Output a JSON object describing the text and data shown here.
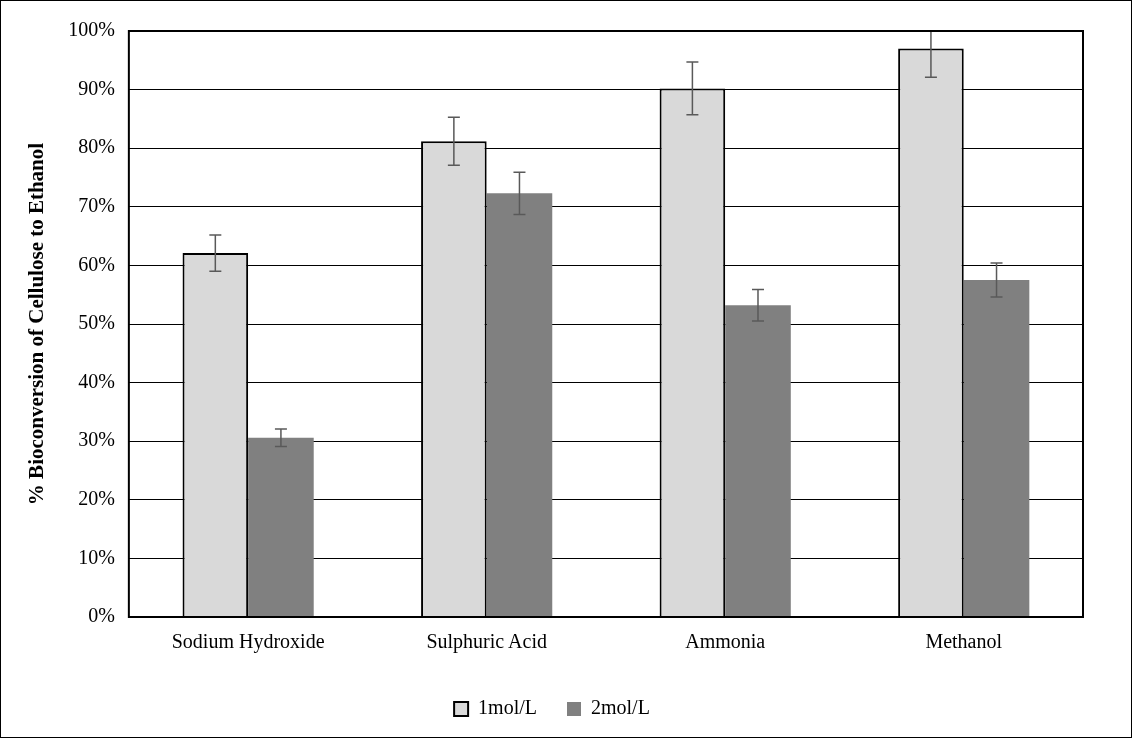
{
  "chart_data": {
    "type": "bar",
    "ylabel": "% Bioconversion of Cellulose to Ethanol",
    "categories": [
      "Sodium Hydroxide",
      "Sulphuric Acid",
      "Ammonia",
      "Methanol"
    ],
    "series": [
      {
        "name": "1mol/L",
        "color": "#d9d9d9",
        "values": [
          62.1,
          81.2,
          90.2,
          97.0
        ],
        "errors": [
          3.1,
          4.1,
          4.5,
          [
            92.1,
            100
          ]
        ]
      },
      {
        "name": "2mol/L",
        "color": "#808080",
        "values": [
          30.6,
          72.3,
          53.2,
          57.5
        ],
        "errors": [
          1.5,
          3.6,
          2.7,
          2.9
        ]
      }
    ],
    "ylim": [
      0,
      100
    ],
    "yticks": [
      {
        "value": 0,
        "label": "0%"
      },
      {
        "value": 10,
        "label": "10%"
      },
      {
        "value": 20,
        "label": "20%"
      },
      {
        "value": 30,
        "label": "30%"
      },
      {
        "value": 40,
        "label": "40%"
      },
      {
        "value": 50,
        "label": "50%"
      },
      {
        "value": 60,
        "label": "60%"
      },
      {
        "value": 70,
        "label": "70%"
      },
      {
        "value": 80,
        "label": "80%"
      },
      {
        "value": 90,
        "label": "90%"
      },
      {
        "value": 100,
        "label": "100%"
      }
    ],
    "grid": "y",
    "legend": "bottom"
  }
}
